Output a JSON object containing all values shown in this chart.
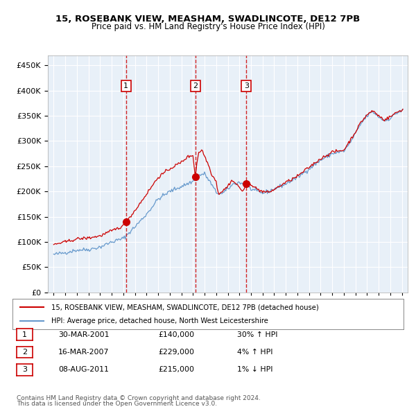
{
  "title1": "15, ROSEBANK VIEW, MEASHAM, SWADLINCOTE, DE12 7PB",
  "title2": "Price paid vs. HM Land Registry's House Price Index (HPI)",
  "legend_line1": "15, ROSEBANK VIEW, MEASHAM, SWADLINCOTE, DE12 7PB (detached house)",
  "legend_line2": "HPI: Average price, detached house, North West Leicestershire",
  "footer1": "Contains HM Land Registry data © Crown copyright and database right 2024.",
  "footer2": "This data is licensed under the Open Government Licence v3.0.",
  "transactions": [
    {
      "label": "1",
      "date": "30-MAR-2001",
      "price": 140000,
      "hpi_rel": "30% ↑ HPI"
    },
    {
      "label": "2",
      "date": "16-MAR-2007",
      "price": 229000,
      "hpi_rel": "4% ↑ HPI"
    },
    {
      "label": "3",
      "date": "08-AUG-2011",
      "price": 215000,
      "hpi_rel": "1% ↓ HPI"
    }
  ],
  "transaction_dates_decimal": [
    2001.23,
    2007.2,
    2011.6
  ],
  "ylim": [
    0,
    470000
  ],
  "yticks": [
    0,
    50000,
    100000,
    150000,
    200000,
    250000,
    300000,
    350000,
    400000,
    450000
  ],
  "xlim_start": 1994.5,
  "xlim_end": 2025.5,
  "red_line_color": "#cc0000",
  "blue_line_color": "#6699cc",
  "bg_color": "#ddeeff",
  "plot_bg": "#e8f0f8",
  "dashed_line_color": "#cc0000",
  "dot_color": "#cc0000",
  "grid_color": "#ffffff",
  "box_edge_color": "#cc0000"
}
